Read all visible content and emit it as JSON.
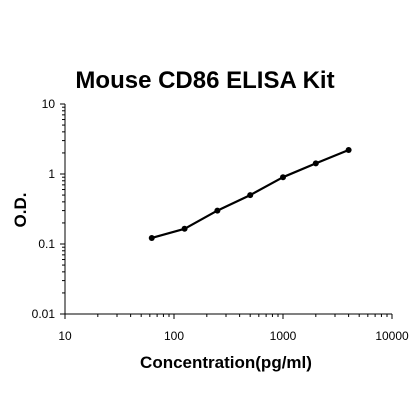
{
  "chart_data": {
    "type": "line",
    "title": "Mouse CD86 ELISA Kit",
    "xlabel": "Concentration(pg/ml)",
    "ylabel": "O.D.",
    "xscale": "log",
    "yscale": "log",
    "xlim": [
      10,
      10000
    ],
    "ylim": [
      0.01,
      10
    ],
    "x_ticks": [
      10,
      100,
      1000,
      10000
    ],
    "x_tick_labels": [
      "10",
      "100",
      "1000",
      "10000"
    ],
    "y_ticks": [
      0.01,
      0.1,
      1,
      10
    ],
    "y_tick_labels": [
      "0.01",
      "0.1",
      "1",
      "10"
    ],
    "grid": false,
    "legend": "none",
    "line_color": "#000000",
    "series": [
      {
        "x": [
          62.5,
          125,
          250,
          500,
          1000,
          2000,
          4000
        ],
        "y": [
          0.122,
          0.165,
          0.3,
          0.5,
          0.9,
          1.42,
          2.2
        ]
      }
    ]
  }
}
